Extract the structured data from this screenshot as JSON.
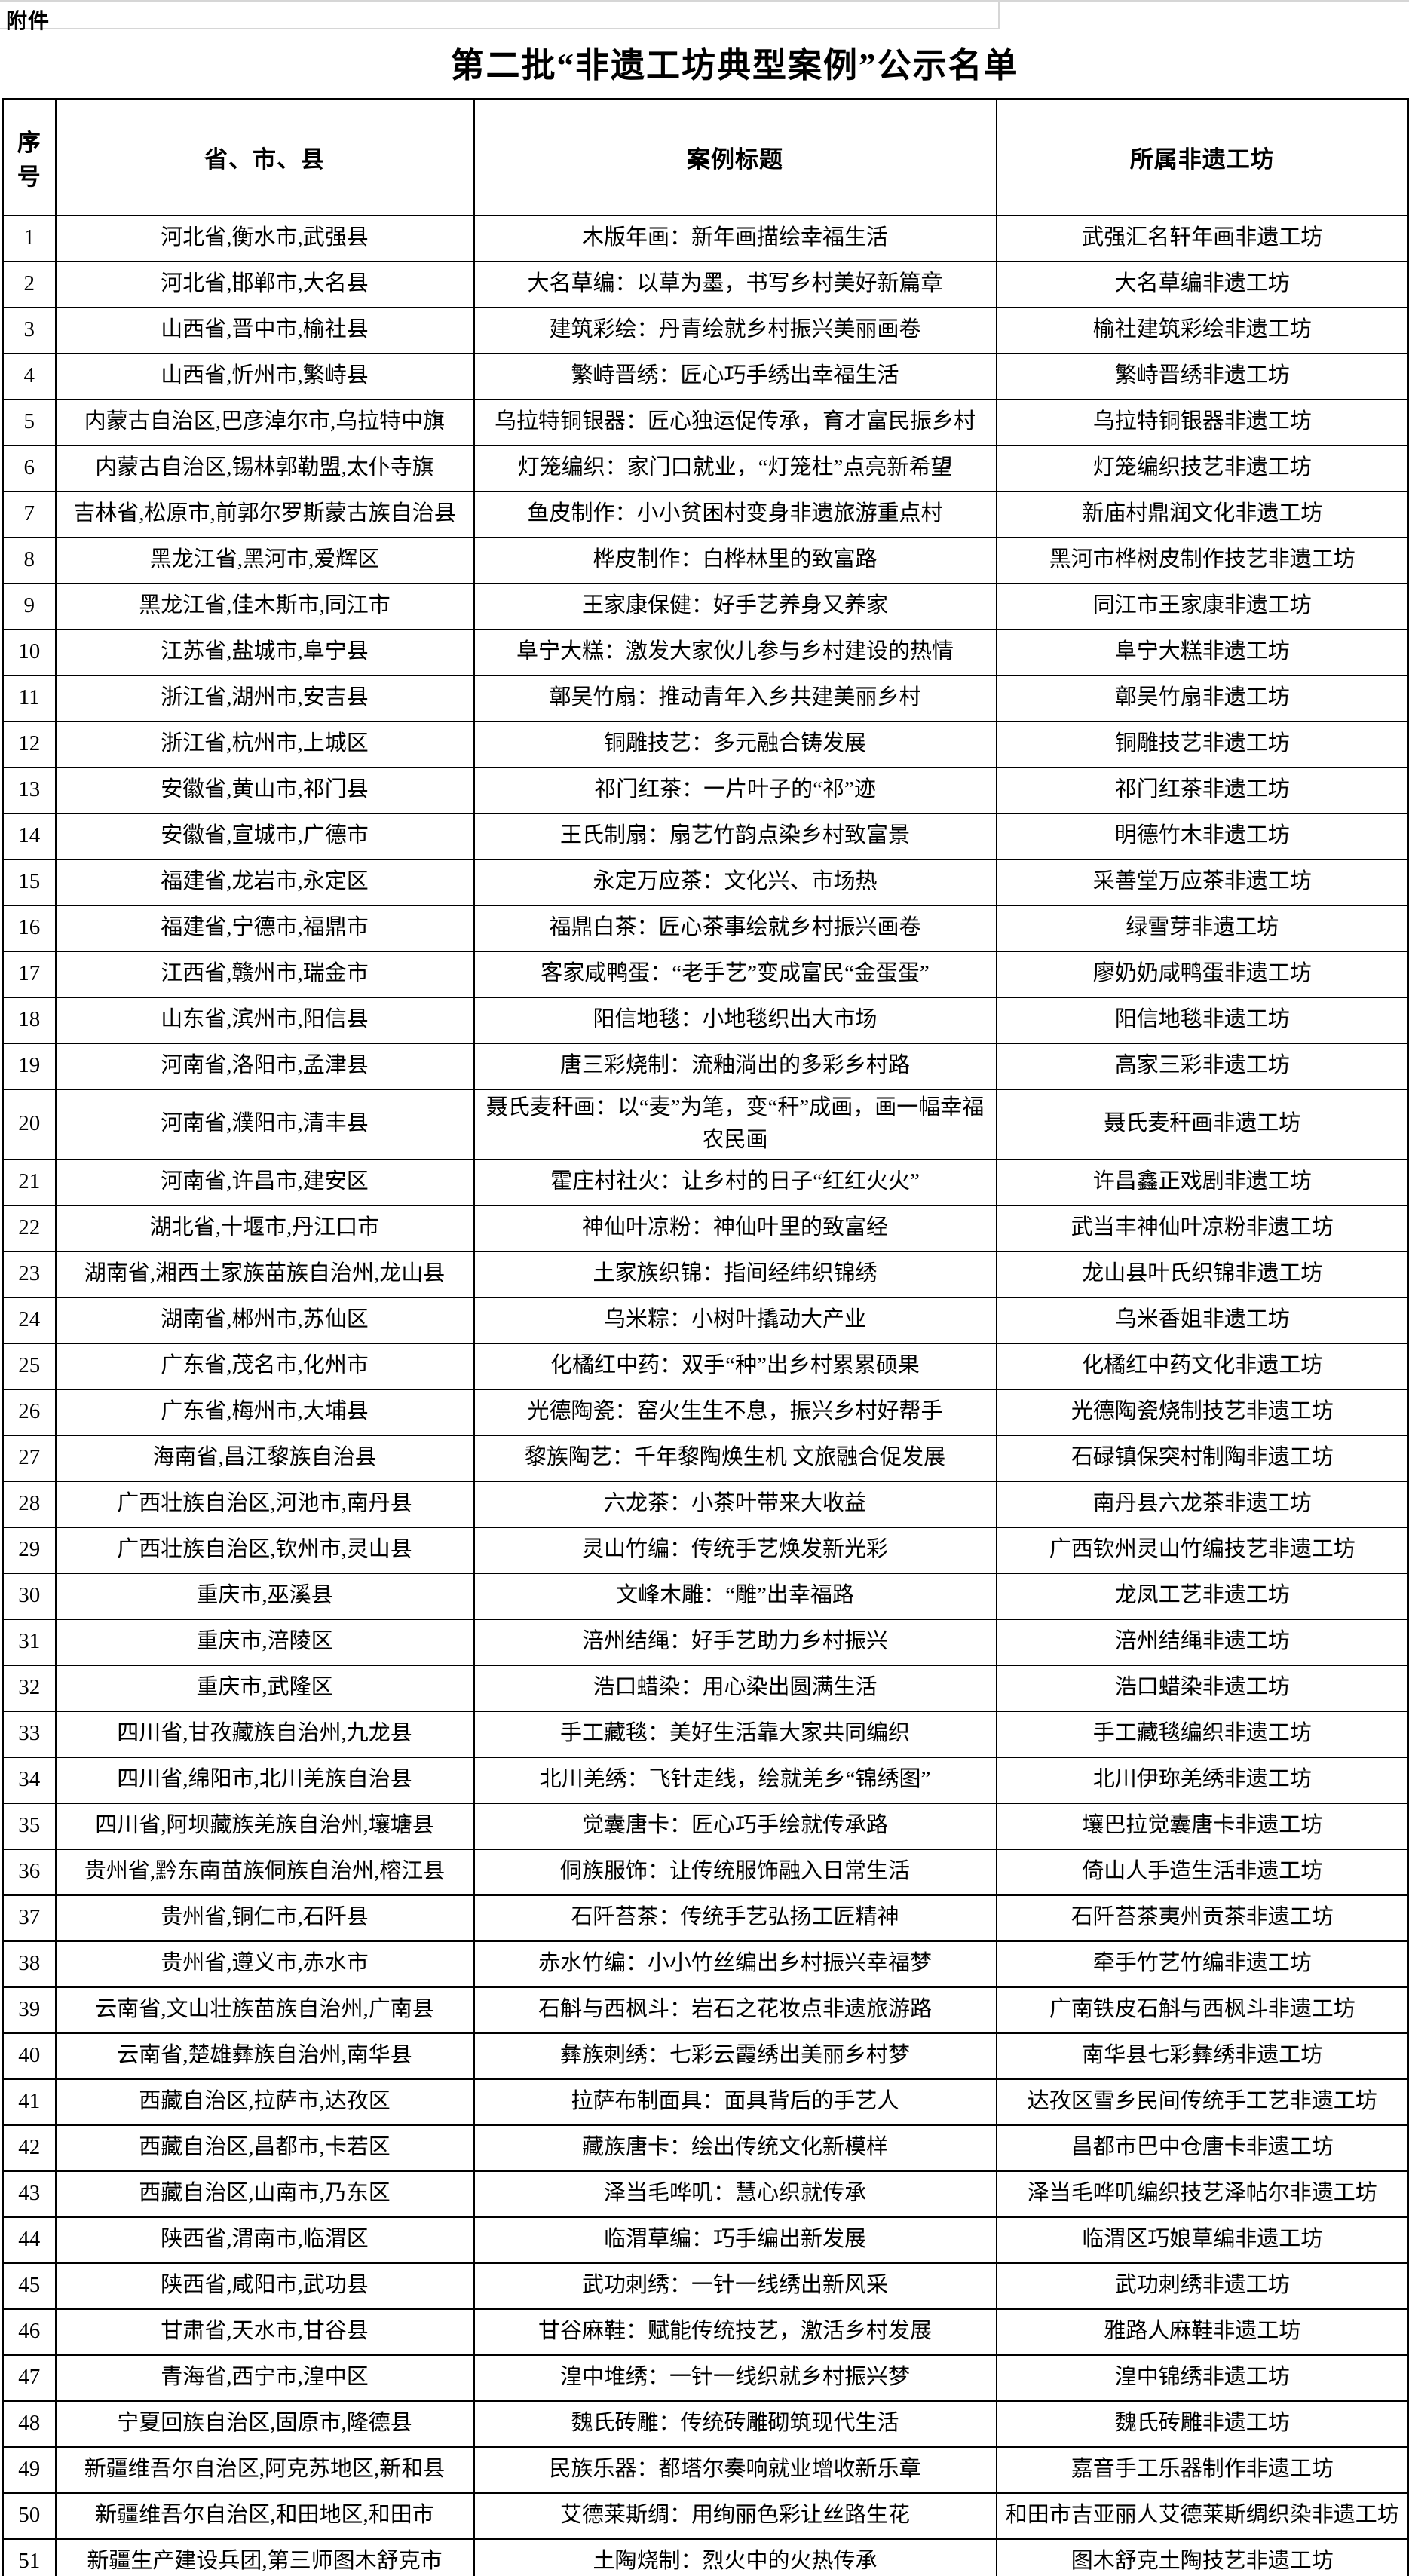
{
  "page": {
    "attachment_label": "附件",
    "title": "第二批“非遗工坊典型案例”公示名单"
  },
  "table": {
    "headers": [
      "序号",
      "省、市、县",
      "案例标题",
      "所属非遗工坊"
    ],
    "rows": [
      {
        "no": "1",
        "region": "河北省,衡水市,武强县",
        "case_title": "木版年画：新年画描绘幸福生活",
        "workshop": "武强汇名轩年画非遗工坊"
      },
      {
        "no": "2",
        "region": "河北省,邯郸市,大名县",
        "case_title": "大名草编：以草为墨，书写乡村美好新篇章",
        "workshop": "大名草编非遗工坊"
      },
      {
        "no": "3",
        "region": "山西省,晋中市,榆社县",
        "case_title": "建筑彩绘：丹青绘就乡村振兴美丽画卷",
        "workshop": "榆社建筑彩绘非遗工坊"
      },
      {
        "no": "4",
        "region": "山西省,忻州市,繁峙县",
        "case_title": "繁峙晋绣：匠心巧手绣出幸福生活",
        "workshop": "繁峙晋绣非遗工坊"
      },
      {
        "no": "5",
        "region": "内蒙古自治区,巴彦淖尔市,乌拉特中旗",
        "case_title": "乌拉特铜银器：匠心独运促传承，育才富民振乡村",
        "workshop": "乌拉特铜银器非遗工坊"
      },
      {
        "no": "6",
        "region": "内蒙古自治区,锡林郭勒盟,太仆寺旗",
        "case_title": "灯笼编织：家门口就业，“灯笼杜”点亮新希望",
        "workshop": "灯笼编织技艺非遗工坊"
      },
      {
        "no": "7",
        "region": "吉林省,松原市,前郭尔罗斯蒙古族自治县",
        "case_title": "鱼皮制作：小小贫困村变身非遗旅游重点村",
        "workshop": "新庙村鼎润文化非遗工坊"
      },
      {
        "no": "8",
        "region": "黑龙江省,黑河市,爱辉区",
        "case_title": "桦皮制作：白桦林里的致富路",
        "workshop": "黑河市桦树皮制作技艺非遗工坊"
      },
      {
        "no": "9",
        "region": "黑龙江省,佳木斯市,同江市",
        "case_title": "王家康保健：好手艺养身又养家",
        "workshop": "同江市王家康非遗工坊"
      },
      {
        "no": "10",
        "region": "江苏省,盐城市,阜宁县",
        "case_title": "阜宁大糕：激发大家伙儿参与乡村建设的热情",
        "workshop": "阜宁大糕非遗工坊"
      },
      {
        "no": "11",
        "region": "浙江省,湖州市,安吉县",
        "case_title": "鄣吴竹扇：推动青年入乡共建美丽乡村",
        "workshop": "鄣吴竹扇非遗工坊"
      },
      {
        "no": "12",
        "region": "浙江省,杭州市,上城区",
        "case_title": "铜雕技艺：多元融合铸发展",
        "workshop": "铜雕技艺非遗工坊"
      },
      {
        "no": "13",
        "region": "安徽省,黄山市,祁门县",
        "case_title": "祁门红茶：一片叶子的“祁”迹",
        "workshop": "祁门红茶非遗工坊"
      },
      {
        "no": "14",
        "region": "安徽省,宣城市,广德市",
        "case_title": "王氏制扇：扇艺竹韵点染乡村致富景",
        "workshop": "明德竹木非遗工坊"
      },
      {
        "no": "15",
        "region": "福建省,龙岩市,永定区",
        "case_title": "永定万应茶：文化兴、市场热",
        "workshop": "采善堂万应茶非遗工坊"
      },
      {
        "no": "16",
        "region": "福建省,宁德市,福鼎市",
        "case_title": "福鼎白茶：匠心茶事绘就乡村振兴画卷",
        "workshop": "绿雪芽非遗工坊"
      },
      {
        "no": "17",
        "region": "江西省,赣州市,瑞金市",
        "case_title": "客家咸鸭蛋：“老手艺”变成富民“金蛋蛋”",
        "workshop": "廖奶奶咸鸭蛋非遗工坊"
      },
      {
        "no": "18",
        "region": "山东省,滨州市,阳信县",
        "case_title": "阳信地毯：小地毯织出大市场",
        "workshop": "阳信地毯非遗工坊"
      },
      {
        "no": "19",
        "region": "河南省,洛阳市,孟津县",
        "case_title": "唐三彩烧制：流釉淌出的多彩乡村路",
        "workshop": "高家三彩非遗工坊"
      },
      {
        "no": "20",
        "region": "河南省,濮阳市,清丰县",
        "case_title": "聂氏麦秆画：以“麦”为笔，变“秆”成画，画一幅幸福农民画",
        "workshop": "聂氏麦秆画非遗工坊"
      },
      {
        "no": "21",
        "region": "河南省,许昌市,建安区",
        "case_title": "霍庄村社火：让乡村的日子“红红火火”",
        "workshop": "许昌鑫正戏剧非遗工坊"
      },
      {
        "no": "22",
        "region": "湖北省,十堰市,丹江口市",
        "case_title": "神仙叶凉粉：神仙叶里的致富经",
        "workshop": "武当丰神仙叶凉粉非遗工坊"
      },
      {
        "no": "23",
        "region": "湖南省,湘西土家族苗族自治州,龙山县",
        "case_title": "土家族织锦：指间经纬织锦绣",
        "workshop": "龙山县叶氏织锦非遗工坊"
      },
      {
        "no": "24",
        "region": "湖南省,郴州市,苏仙区",
        "case_title": "乌米粽：小树叶撬动大产业",
        "workshop": "乌米香姐非遗工坊"
      },
      {
        "no": "25",
        "region": "广东省,茂名市,化州市",
        "case_title": "化橘红中药：双手“种”出乡村累累硕果",
        "workshop": "化橘红中药文化非遗工坊"
      },
      {
        "no": "26",
        "region": "广东省,梅州市,大埔县",
        "case_title": "光德陶瓷：窑火生生不息，振兴乡村好帮手",
        "workshop": "光德陶瓷烧制技艺非遗工坊"
      },
      {
        "no": "27",
        "region": "海南省,昌江黎族自治县",
        "case_title": "黎族陶艺：千年黎陶焕生机 文旅融合促发展",
        "workshop": "石碌镇保突村制陶非遗工坊"
      },
      {
        "no": "28",
        "region": "广西壮族自治区,河池市,南丹县",
        "case_title": "六龙茶：小茶叶带来大收益",
        "workshop": "南丹县六龙茶非遗工坊"
      },
      {
        "no": "29",
        "region": "广西壮族自治区,钦州市,灵山县",
        "case_title": "灵山竹编：传统手艺焕发新光彩",
        "workshop": "广西钦州灵山竹编技艺非遗工坊"
      },
      {
        "no": "30",
        "region": "重庆市,巫溪县",
        "case_title": "文峰木雕：“雕”出幸福路",
        "workshop": "龙凤工艺非遗工坊"
      },
      {
        "no": "31",
        "region": "重庆市,涪陵区",
        "case_title": "涪州结绳：好手艺助力乡村振兴",
        "workshop": "涪州结绳非遗工坊"
      },
      {
        "no": "32",
        "region": "重庆市,武隆区",
        "case_title": "浩口蜡染：用心染出圆满生活",
        "workshop": "浩口蜡染非遗工坊"
      },
      {
        "no": "33",
        "region": "四川省,甘孜藏族自治州,九龙县",
        "case_title": "手工藏毯：美好生活靠大家共同编织",
        "workshop": "手工藏毯编织非遗工坊"
      },
      {
        "no": "34",
        "region": "四川省,绵阳市,北川羌族自治县",
        "case_title": "北川羌绣：飞针走线，绘就羌乡“锦绣图”",
        "workshop": "北川伊珎羌绣非遗工坊"
      },
      {
        "no": "35",
        "region": "四川省,阿坝藏族羌族自治州,壤塘县",
        "case_title": "觉囊唐卡：匠心巧手绘就传承路",
        "workshop": "壤巴拉觉囊唐卡非遗工坊"
      },
      {
        "no": "36",
        "region": "贵州省,黔东南苗族侗族自治州,榕江县",
        "case_title": "侗族服饰：让传统服饰融入日常生活",
        "workshop": "倚山人手造生活非遗工坊"
      },
      {
        "no": "37",
        "region": "贵州省,铜仁市,石阡县",
        "case_title": "石阡苔茶：传统手艺弘扬工匠精神",
        "workshop": "石阡苔茶夷州贡茶非遗工坊"
      },
      {
        "no": "38",
        "region": "贵州省,遵义市,赤水市",
        "case_title": "赤水竹编：小小竹丝编出乡村振兴幸福梦",
        "workshop": "牵手竹艺竹编非遗工坊"
      },
      {
        "no": "39",
        "region": "云南省,文山壮族苗族自治州,广南县",
        "case_title": "石斛与西枫斗：岩石之花妆点非遗旅游路",
        "workshop": "广南铁皮石斛与西枫斗非遗工坊"
      },
      {
        "no": "40",
        "region": "云南省,楚雄彝族自治州,南华县",
        "case_title": "彝族刺绣：七彩云霞绣出美丽乡村梦",
        "workshop": "南华县七彩彝绣非遗工坊"
      },
      {
        "no": "41",
        "region": "西藏自治区,拉萨市,达孜区",
        "case_title": "拉萨布制面具：面具背后的手艺人",
        "workshop": "达孜区雪乡民间传统手工艺非遗工坊"
      },
      {
        "no": "42",
        "region": "西藏自治区,昌都市,卡若区",
        "case_title": "藏族唐卡：绘出传统文化新模样",
        "workshop": "昌都市巴中仓唐卡非遗工坊"
      },
      {
        "no": "43",
        "region": "西藏自治区,山南市,乃东区",
        "case_title": "泽当毛哗叽：慧心织就传承",
        "workshop": "泽当毛哗叽编织技艺泽帖尔非遗工坊"
      },
      {
        "no": "44",
        "region": "陕西省,渭南市,临渭区",
        "case_title": "临渭草编：巧手编出新发展",
        "workshop": "临渭区巧娘草编非遗工坊"
      },
      {
        "no": "45",
        "region": "陕西省,咸阳市,武功县",
        "case_title": "武功刺绣：一针一线绣出新风采",
        "workshop": "武功刺绣非遗工坊"
      },
      {
        "no": "46",
        "region": "甘肃省,天水市,甘谷县",
        "case_title": "甘谷麻鞋：赋能传统技艺，激活乡村发展",
        "workshop": "雅路人麻鞋非遗工坊"
      },
      {
        "no": "47",
        "region": "青海省,西宁市,湟中区",
        "case_title": "湟中堆绣：一针一线织就乡村振兴梦",
        "workshop": "湟中锦绣非遗工坊"
      },
      {
        "no": "48",
        "region": "宁夏回族自治区,固原市,隆德县",
        "case_title": "魏氏砖雕：传统砖雕砌筑现代生活",
        "workshop": "魏氏砖雕非遗工坊"
      },
      {
        "no": "49",
        "region": "新疆维吾尔自治区,阿克苏地区,新和县",
        "case_title": "民族乐器：都塔尔奏响就业增收新乐章",
        "workshop": "嘉音手工乐器制作非遗工坊"
      },
      {
        "no": "50",
        "region": "新疆维吾尔自治区,和田地区,和田市",
        "case_title": "艾德莱斯绸：用绚丽色彩让丝路生花",
        "workshop": "和田市吉亚丽人艾德莱斯绸织染非遗工坊"
      },
      {
        "no": "51",
        "region": "新疆生产建设兵团,第三师图木舒克市",
        "case_title": "土陶烧制：烈火中的火热传承",
        "workshop": "图木舒克土陶技艺非遗工坊"
      }
    ]
  }
}
